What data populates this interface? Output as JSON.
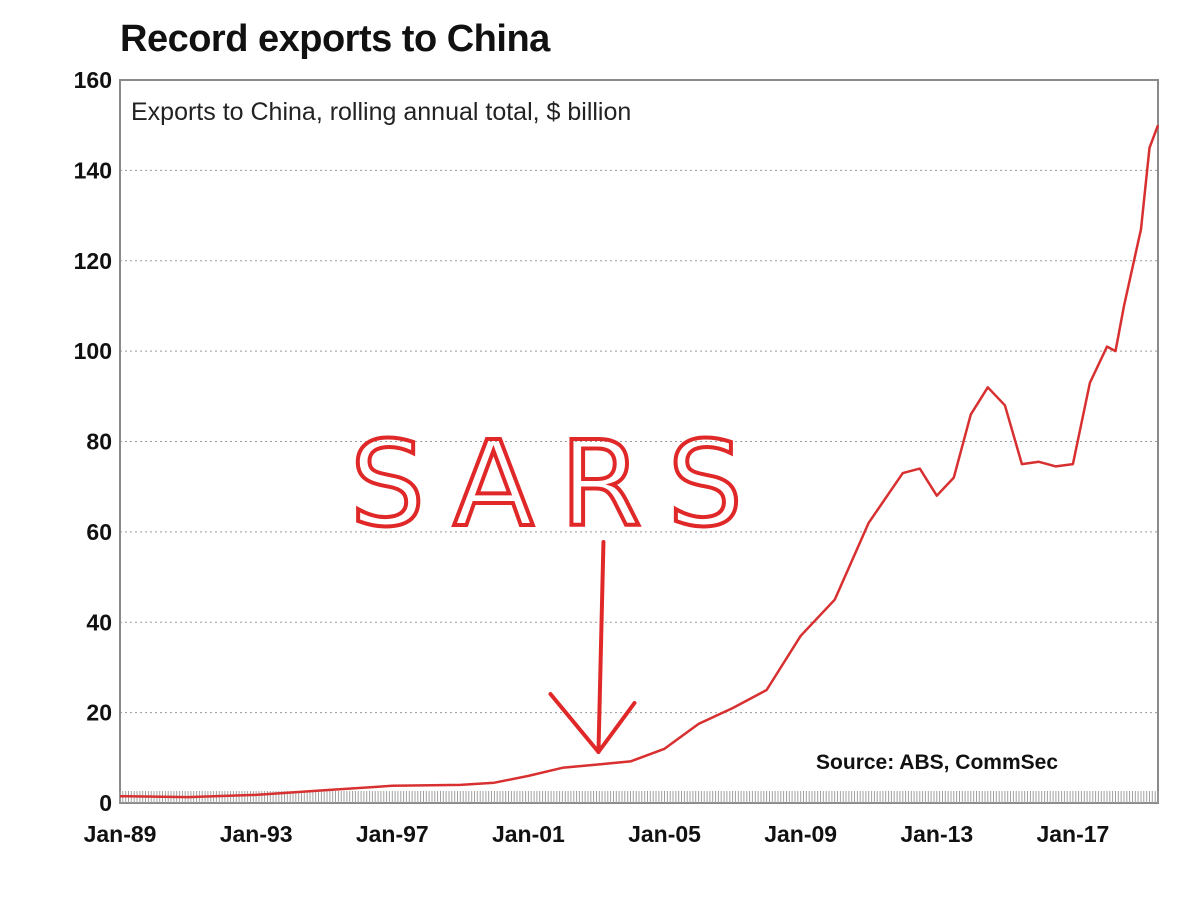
{
  "chart_data": {
    "type": "line",
    "title": "Record exports to China",
    "subtitle": "Exports to China, rolling annual total, $ billion",
    "source": "Source: ABS, CommSec",
    "annotation": "SARS",
    "annotation_x": "Jan-03",
    "ylim": [
      0,
      160
    ],
    "yticks": [
      "0",
      "20",
      "40",
      "60",
      "80",
      "100",
      "120",
      "140",
      "160"
    ],
    "xlim": [
      "Jan-89",
      "Jul-19"
    ],
    "xticks": [
      "Jan-89",
      "Jan-93",
      "Jan-97",
      "Jan-01",
      "Jan-05",
      "Jan-09",
      "Jan-13",
      "Jan-17"
    ],
    "grid": true,
    "series": [
      {
        "color": "#d83030",
        "points": [
          [
            "Jan-89",
            1.5
          ],
          [
            "Jan-91",
            1.3
          ],
          [
            "Jan-93",
            1.8
          ],
          [
            "Jan-95",
            2.8
          ],
          [
            "Jan-97",
            3.8
          ],
          [
            "Jan-99",
            4.0
          ],
          [
            "Jan-00",
            4.5
          ],
          [
            "Jan-01",
            6.0
          ],
          [
            "Jan-02",
            7.8
          ],
          [
            "Jan-03",
            8.5
          ],
          [
            "Jan-04",
            9.2
          ],
          [
            "Jan-05",
            12.0
          ],
          [
            "Jan-06",
            17.5
          ],
          [
            "Jan-07",
            21.0
          ],
          [
            "Jan-08",
            25.0
          ],
          [
            "Jan-09",
            37.0
          ],
          [
            "Jan-10",
            45.0
          ],
          [
            "Jan-11",
            62.0
          ],
          [
            "Jan-12",
            73.0
          ],
          [
            "Jul-12",
            74.0
          ],
          [
            "Jan-13",
            68.0
          ],
          [
            "Jul-13",
            72.0
          ],
          [
            "Jan-14",
            86.0
          ],
          [
            "Jul-14",
            92.0
          ],
          [
            "Jan-15",
            88.0
          ],
          [
            "Jul-15",
            75.0
          ],
          [
            "Jan-16",
            75.5
          ],
          [
            "Jul-16",
            74.5
          ],
          [
            "Jan-17",
            75.0
          ],
          [
            "Jul-17",
            93.0
          ],
          [
            "Jan-18",
            101.0
          ],
          [
            "Apr-18",
            100.0
          ],
          [
            "Jul-18",
            110.0
          ],
          [
            "Jan-19",
            127.0
          ],
          [
            "Apr-19",
            145.0
          ],
          [
            "Jul-19",
            150.0
          ]
        ]
      }
    ]
  }
}
